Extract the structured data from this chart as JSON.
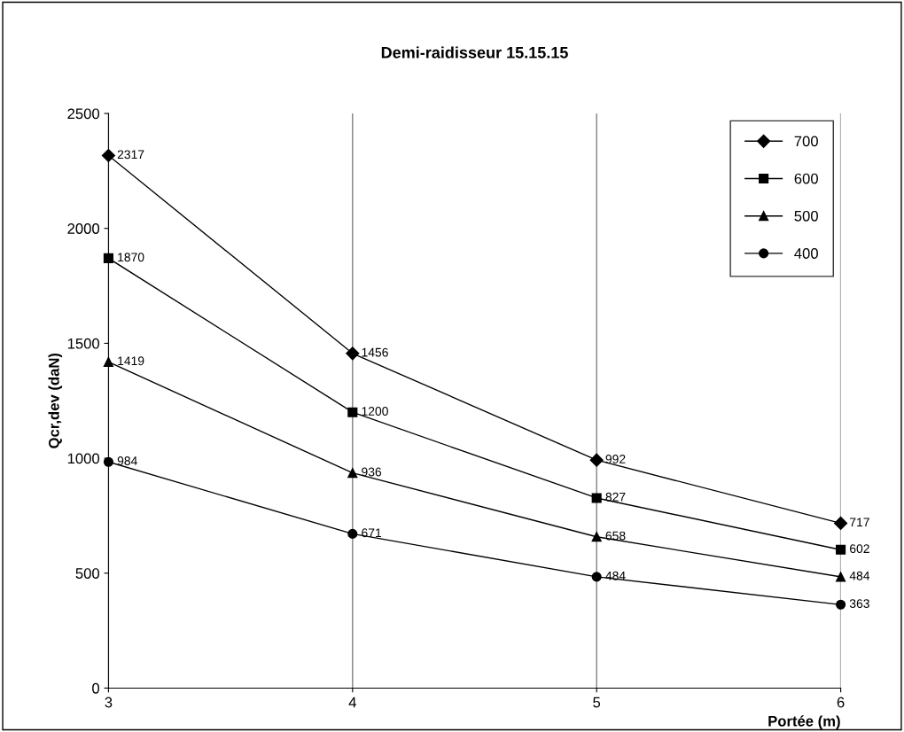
{
  "chart_data": {
    "type": "line",
    "title": "Demi-raidisseur 15.15.15",
    "xlabel": "Portée (m)",
    "ylabel": "Qcr,dev (daN)",
    "x": [
      3,
      4,
      5,
      6
    ],
    "xlim": [
      3,
      6
    ],
    "xticks": [
      3,
      4,
      5,
      6
    ],
    "ylim": [
      0,
      2500
    ],
    "yticks": [
      0,
      500,
      1000,
      1500,
      2000,
      2500
    ],
    "grid": "x",
    "legend": "top right",
    "data_labels": true,
    "line_style": "solid",
    "series": [
      {
        "name": "700",
        "color": "#000000",
        "marker": "diamond",
        "values": [
          2317,
          1456,
          992,
          717
        ]
      },
      {
        "name": "600",
        "color": "#000000",
        "marker": "square",
        "values": [
          1870,
          1200,
          827,
          602
        ]
      },
      {
        "name": "500",
        "color": "#000000",
        "marker": "triangle",
        "values": [
          1419,
          936,
          658,
          484
        ]
      },
      {
        "name": "400",
        "color": "#000000",
        "marker": "circle",
        "values": [
          984,
          671,
          484,
          363
        ]
      }
    ]
  }
}
